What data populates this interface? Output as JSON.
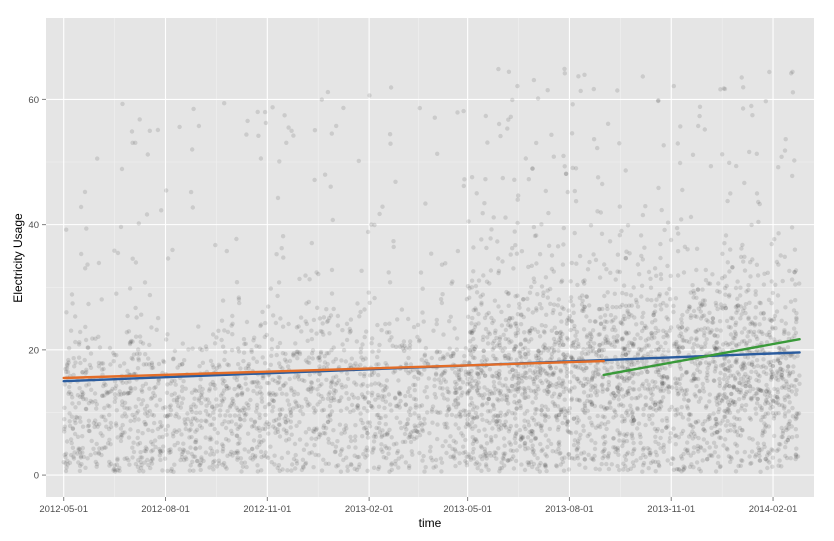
{
  "chart_data": {
    "type": "scatter",
    "title": "",
    "xlabel": "time",
    "ylabel": "Electricity Usage",
    "x_type": "date",
    "xlim": [
      "2012-04-15",
      "2014-03-10"
    ],
    "ylim": [
      -3.5,
      73
    ],
    "x_ticks": [
      "2012-05-01",
      "2012-08-01",
      "2012-11-01",
      "2013-02-01",
      "2013-05-01",
      "2013-08-01",
      "2013-11-01",
      "2014-02-01"
    ],
    "y_ticks": [
      0,
      20,
      40,
      60
    ],
    "grid": true,
    "legend": "none",
    "point_color": "#333333",
    "background": "#e5e5e5",
    "scatter_density": [
      {
        "from": "2012-05-01",
        "to": "2012-11-01",
        "y_center": 10,
        "y_spread": 10,
        "density": "medium"
      },
      {
        "from": "2012-11-01",
        "to": "2013-05-01",
        "y_center": 12,
        "y_spread": 10,
        "density": "medium"
      },
      {
        "from": "2013-05-01",
        "to": "2014-02-25",
        "y_center": 15,
        "y_spread": 12,
        "density": "high"
      }
    ],
    "series": [
      {
        "type": "trend",
        "color": "#2b5c9e",
        "points": [
          [
            "2012-05-01",
            15.0
          ],
          [
            "2014-02-25",
            19.6
          ]
        ]
      },
      {
        "type": "trend",
        "color": "#e36d28",
        "points": [
          [
            "2012-05-01",
            15.5
          ],
          [
            "2013-09-01",
            18.2
          ]
        ]
      },
      {
        "type": "trend",
        "color": "#3a9a3a",
        "points": [
          [
            "2013-09-01",
            16.0
          ],
          [
            "2014-02-25",
            21.7
          ]
        ]
      }
    ]
  }
}
